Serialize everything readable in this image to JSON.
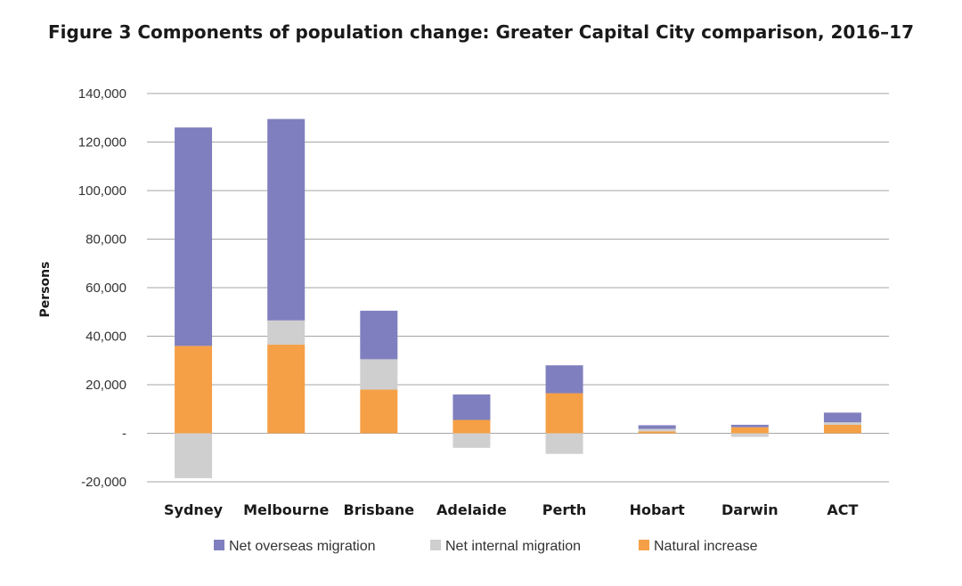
{
  "figure_title": "Figure 3 Components of population change: Greater Capital City comparison, 2016–17",
  "colors": {
    "net_overseas_migration": "#7f7fbf",
    "net_internal_migration": "#cfcfcf",
    "natural_increase": "#f5a046",
    "grid": "#a6a6a6"
  },
  "chart_data": {
    "type": "bar",
    "stacked": true,
    "title": "Figure 3 Components of population change: Greater Capital City comparison, 2016–17",
    "xlabel": "",
    "ylabel": "Persons",
    "ylim": [
      -20000,
      140000
    ],
    "yticks": [
      140000,
      120000,
      100000,
      80000,
      60000,
      40000,
      20000,
      0,
      -20000
    ],
    "ytick_labels": [
      "140,000",
      "120,000",
      "100,000",
      "80,000",
      "60,000",
      "40,000",
      "20,000",
      "-",
      "-20,000"
    ],
    "categories": [
      "Sydney",
      "Melbourne",
      "Brisbane",
      "Adelaide",
      "Perth",
      "Hobart",
      "Darwin",
      "ACT"
    ],
    "series": [
      {
        "name": "Natural increase",
        "values": [
          36000,
          36500,
          18000,
          5500,
          16500,
          800,
          2500,
          3500
        ]
      },
      {
        "name": "Net internal migration",
        "values": [
          -18500,
          10000,
          12500,
          -6000,
          -8500,
          1000,
          -1500,
          1000
        ]
      },
      {
        "name": "Net overseas migration",
        "values": [
          90000,
          83000,
          20000,
          10500,
          11500,
          1500,
          1000,
          4000
        ]
      }
    ],
    "legend_order": [
      "Net overseas migration",
      "Net internal migration",
      "Natural increase"
    ],
    "legend_position": "bottom",
    "grid": true
  }
}
